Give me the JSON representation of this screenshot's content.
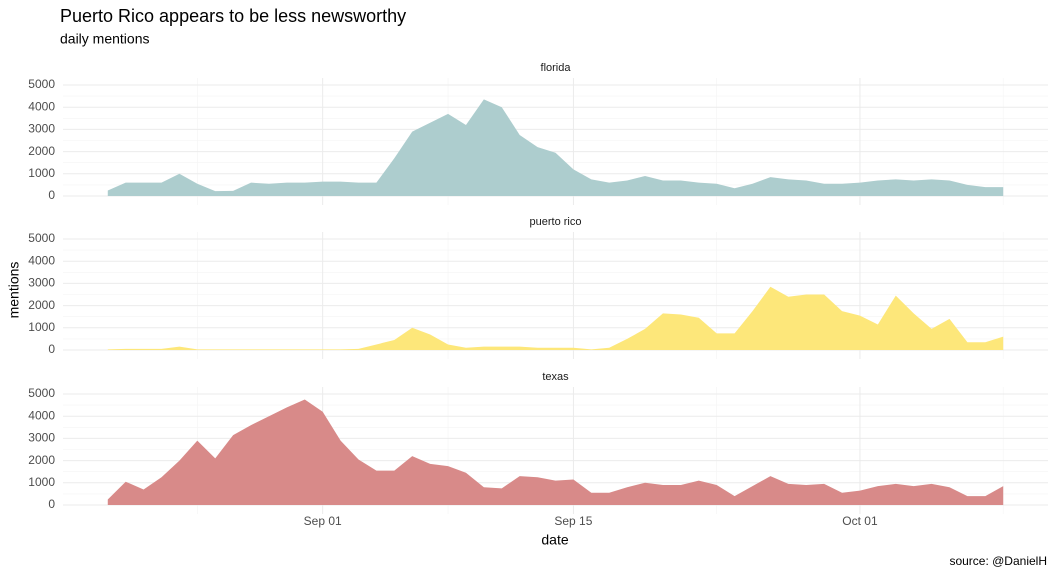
{
  "chart_data": {
    "type": "area",
    "title": "Puerto Rico appears to be less newsworthy",
    "subtitle": "daily mentions",
    "x_label": "date",
    "y_label": "mentions",
    "caption": "source: @DanielH",
    "x": [
      "Aug 20",
      "Aug 21",
      "Aug 22",
      "Aug 23",
      "Aug 24",
      "Aug 25",
      "Aug 26",
      "Aug 27",
      "Aug 28",
      "Aug 29",
      "Aug 30",
      "Aug 31",
      "Sep 01",
      "Sep 02",
      "Sep 03",
      "Sep 04",
      "Sep 05",
      "Sep 06",
      "Sep 07",
      "Sep 08",
      "Sep 09",
      "Sep 10",
      "Sep 11",
      "Sep 12",
      "Sep 13",
      "Sep 14",
      "Sep 15",
      "Sep 16",
      "Sep 17",
      "Sep 18",
      "Sep 19",
      "Sep 20",
      "Sep 21",
      "Sep 22",
      "Sep 23",
      "Sep 24",
      "Sep 25",
      "Sep 26",
      "Sep 27",
      "Sep 28",
      "Sep 29",
      "Sep 30",
      "Oct 01",
      "Oct 02",
      "Oct 03",
      "Oct 04",
      "Oct 05",
      "Oct 06",
      "Oct 07",
      "Oct 08",
      "Oct 09"
    ],
    "xlim": [
      "Aug 20",
      "Oct 09"
    ],
    "xticks": [
      "Sep 01",
      "Sep 15",
      "Oct 01"
    ],
    "ylim": [
      0,
      5000
    ],
    "yticks": [
      0,
      1000,
      2000,
      3000,
      4000,
      5000
    ],
    "grid": true,
    "series": [
      {
        "name": "florida",
        "color": "#adcdce",
        "values": [
          250,
          600,
          600,
          600,
          1000,
          550,
          220,
          230,
          600,
          550,
          600,
          600,
          650,
          650,
          600,
          600,
          1700,
          2900,
          3300,
          3700,
          3200,
          4350,
          4000,
          2750,
          2200,
          1950,
          1200,
          750,
          600,
          700,
          900,
          700,
          700,
          600,
          550,
          350,
          550,
          850,
          750,
          700,
          550,
          550,
          600,
          700,
          750,
          700,
          750,
          700,
          500,
          400,
          400
        ]
      },
      {
        "name": "puerto rico",
        "color": "#fde77a",
        "values": [
          30,
          50,
          50,
          50,
          150,
          30,
          30,
          30,
          30,
          30,
          30,
          30,
          30,
          30,
          50,
          250,
          450,
          1000,
          700,
          250,
          100,
          150,
          150,
          150,
          100,
          100,
          100,
          30,
          100,
          500,
          950,
          1650,
          1600,
          1450,
          750,
          750,
          1750,
          2850,
          2400,
          2500,
          2500,
          1750,
          1550,
          1150,
          2450,
          1650,
          950,
          1400,
          350,
          350,
          600
        ]
      },
      {
        "name": "texas",
        "color": "#d88a89",
        "values": [
          250,
          1050,
          700,
          1250,
          2000,
          2900,
          2100,
          3150,
          3600,
          4000,
          4400,
          4750,
          4200,
          2900,
          2050,
          1550,
          1550,
          2200,
          1850,
          1750,
          1450,
          800,
          750,
          1300,
          1250,
          1100,
          1150,
          550,
          550,
          800,
          1000,
          900,
          900,
          1100,
          900,
          400,
          850,
          1300,
          950,
          900,
          950,
          550,
          650,
          850,
          950,
          850,
          950,
          800,
          400,
          400,
          850
        ]
      }
    ]
  }
}
